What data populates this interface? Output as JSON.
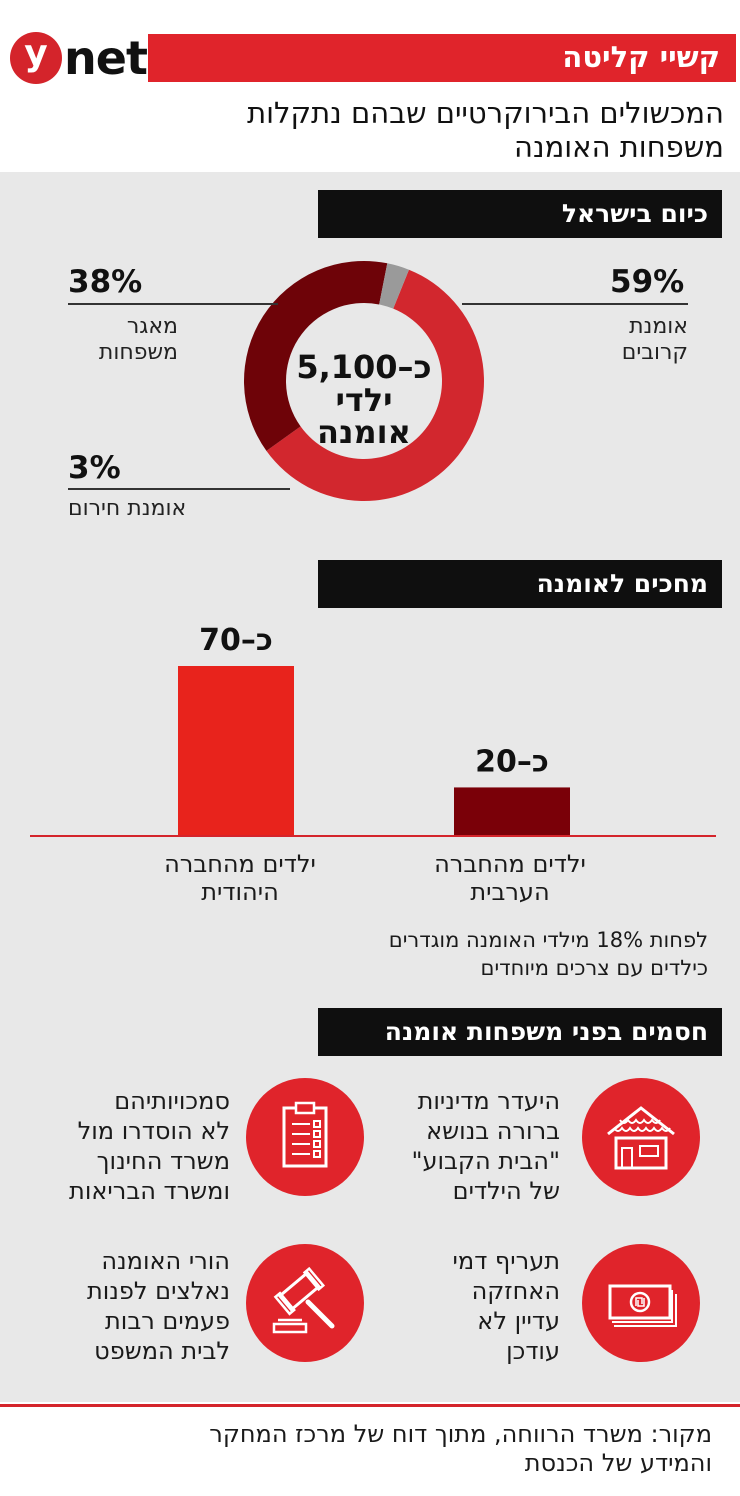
{
  "brand": {
    "logo_letter": "y",
    "logo_word": "net"
  },
  "header": {
    "title": "קשיי קליטה",
    "subtitle_line1": "המכשולים הבירוקרטיים שבהם נתקלות",
    "subtitle_line2": "משפחות האומנה"
  },
  "sections": {
    "today": "כיום בישראל",
    "waiting": "מחכים לאומנה",
    "barriers": "חסמים בפני משפחות אומנה"
  },
  "colors": {
    "brand_red": "#e0242b",
    "relatives": "#d2272e",
    "pool": "#6e0308",
    "emergency": "#9a9a9a",
    "bar_jewish": "#e8231c",
    "bar_arab": "#7a0008"
  },
  "chart_data": [
    {
      "type": "pie",
      "variant": "donut",
      "title": "כיום בישראל",
      "center_line1": "כ–5,100",
      "center_line2": "ילדי",
      "center_line3": "אומנה",
      "slices": [
        {
          "label": "אומנת קרובים",
          "label_line1": "אומנת",
          "label_line2": "קרובים",
          "value": 59,
          "display": "59%"
        },
        {
          "label": "מאגר משפחות",
          "label_line1": "מאגר",
          "label_line2": "משפחות",
          "value": 38,
          "display": "38%"
        },
        {
          "label": "אומנת חירום",
          "value": 3,
          "display": "3%"
        }
      ]
    },
    {
      "type": "bar",
      "title": "מחכים לאומנה",
      "categories": [
        "ילדים מהחברה היהודית",
        "ילדים מהחברה הערבית"
      ],
      "category_lines": [
        [
          "ילדים מהחברה",
          "היהודית"
        ],
        [
          "ילדים מהחברה",
          "הערבית"
        ]
      ],
      "values": [
        70,
        20
      ],
      "value_labels": [
        "כ–70",
        "כ–20"
      ],
      "ylim": [
        0,
        70
      ]
    }
  ],
  "note_line1": "לפחות 18% מילדי האומנה מוגדרים",
  "note_line2": "כילדים עם צרכים מיוחדים",
  "barriers": [
    {
      "lines": [
        "היעדר מדיניות",
        "ברורה בנושא",
        "\"הבית הקבוע\"",
        "של הילדים"
      ],
      "icon": "house-icon"
    },
    {
      "lines": [
        "סמכויותיהם",
        "לא הוסדרו מול",
        "משרד החינוך",
        "ומשרד הבריאות"
      ],
      "icon": "clipboard-icon"
    },
    {
      "lines": [
        "תעריף דמי",
        "האחזקה",
        "עדיין לא",
        "עודכן"
      ],
      "icon": "banknote-icon"
    },
    {
      "lines": [
        "הורי האומנה",
        "נאלצים לפנות",
        "פעמים רבות",
        "לבית המשפט"
      ],
      "icon": "gavel-icon"
    }
  ],
  "source_line1": "מקור: משרד הרווחה, מתוך דוח של מרכז המחקר",
  "source_line2": "והמידע של הכנסת"
}
